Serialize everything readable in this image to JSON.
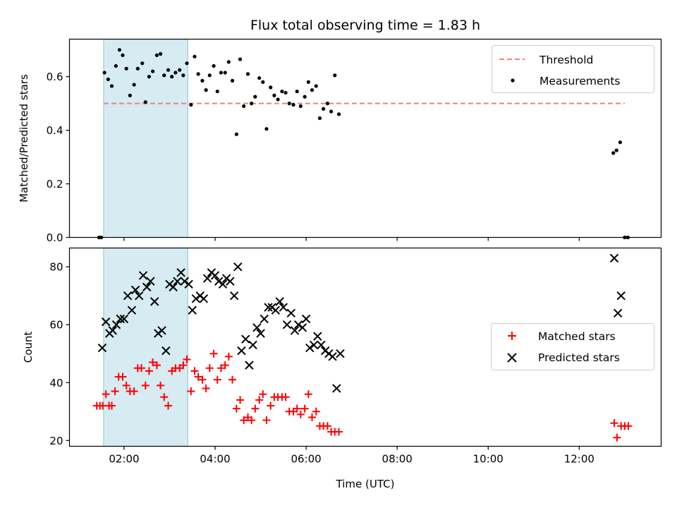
{
  "chart_data": [
    {
      "type": "scatter",
      "title": "Flux total observing time = 1.83 h",
      "xlabel": "",
      "ylabel": "Matched/Predicted stars",
      "xlim": [
        0.8,
        13.8
      ],
      "ylim": [
        0.0,
        0.74
      ],
      "yticks": [
        0.0,
        0.2,
        0.4,
        0.6
      ],
      "ytick_labels": [
        "0.0",
        "0.2",
        "0.4",
        "0.6"
      ],
      "span": {
        "x0": 1.55,
        "x1": 3.4,
        "color": "#add8e6"
      },
      "legend_position": "top-right",
      "threshold": {
        "name": "Threshold",
        "value": 0.5,
        "x0": 1.55,
        "x1": 13.0,
        "color": "#f08080"
      },
      "series": [
        {
          "name": "Measurements",
          "color": "#000000",
          "points": [
            [
              1.45,
              0.0
            ],
            [
              1.5,
              0.0
            ],
            [
              1.57,
              0.615
            ],
            [
              1.65,
              0.59
            ],
            [
              1.73,
              0.565
            ],
            [
              1.82,
              0.64
            ],
            [
              1.9,
              0.7
            ],
            [
              1.97,
              0.68
            ],
            [
              2.05,
              0.63
            ],
            [
              2.13,
              0.53
            ],
            [
              2.22,
              0.57
            ],
            [
              2.3,
              0.63
            ],
            [
              2.4,
              0.65
            ],
            [
              2.47,
              0.505
            ],
            [
              2.55,
              0.6
            ],
            [
              2.63,
              0.62
            ],
            [
              2.72,
              0.68
            ],
            [
              2.8,
              0.685
            ],
            [
              2.88,
              0.605
            ],
            [
              2.97,
              0.625
            ],
            [
              3.05,
              0.6
            ],
            [
              3.13,
              0.615
            ],
            [
              3.22,
              0.625
            ],
            [
              3.3,
              0.605
            ],
            [
              3.38,
              0.65
            ],
            [
              3.47,
              0.495
            ],
            [
              3.55,
              0.675
            ],
            [
              3.63,
              0.61
            ],
            [
              3.72,
              0.585
            ],
            [
              3.8,
              0.55
            ],
            [
              3.88,
              0.605
            ],
            [
              3.97,
              0.64
            ],
            [
              4.05,
              0.545
            ],
            [
              4.13,
              0.615
            ],
            [
              4.22,
              0.615
            ],
            [
              4.3,
              0.655
            ],
            [
              4.38,
              0.585
            ],
            [
              4.47,
              0.385
            ],
            [
              4.55,
              0.665
            ],
            [
              4.63,
              0.49
            ],
            [
              4.72,
              0.61
            ],
            [
              4.8,
              0.5
            ],
            [
              4.88,
              0.525
            ],
            [
              4.97,
              0.595
            ],
            [
              5.05,
              0.58
            ],
            [
              5.13,
              0.405
            ],
            [
              5.22,
              0.56
            ],
            [
              5.3,
              0.53
            ],
            [
              5.38,
              0.515
            ],
            [
              5.47,
              0.545
            ],
            [
              5.55,
              0.54
            ],
            [
              5.63,
              0.5
            ],
            [
              5.72,
              0.495
            ],
            [
              5.8,
              0.545
            ],
            [
              5.88,
              0.49
            ],
            [
              5.97,
              0.525
            ],
            [
              6.05,
              0.58
            ],
            [
              6.13,
              0.55
            ],
            [
              6.22,
              0.565
            ],
            [
              6.3,
              0.445
            ],
            [
              6.38,
              0.48
            ],
            [
              6.47,
              0.5
            ],
            [
              6.55,
              0.47
            ],
            [
              6.63,
              0.605
            ],
            [
              6.72,
              0.46
            ],
            [
              12.75,
              0.315
            ],
            [
              12.82,
              0.325
            ],
            [
              12.9,
              0.355
            ],
            [
              13.0,
              0.0
            ],
            [
              13.07,
              0.0
            ]
          ]
        }
      ]
    },
    {
      "type": "scatter",
      "title": "",
      "xlabel": "Time (UTC)",
      "ylabel": "Count",
      "xlim": [
        0.8,
        13.8
      ],
      "ylim": [
        18.0,
        86.5
      ],
      "yticks": [
        20,
        40,
        60,
        80
      ],
      "ytick_labels": [
        "20",
        "40",
        "60",
        "80"
      ],
      "xticks": [
        2,
        4,
        6,
        8,
        10,
        12
      ],
      "xtick_labels": [
        "02:00",
        "04:00",
        "06:00",
        "08:00",
        "10:00",
        "12:00"
      ],
      "span": {
        "x0": 1.55,
        "x1": 3.4,
        "color": "#add8e6"
      },
      "legend_position": "center-right",
      "series": [
        {
          "name": "Matched stars",
          "marker": "plus",
          "color": "#ff0000",
          "points": [
            [
              1.4,
              32
            ],
            [
              1.47,
              32
            ],
            [
              1.53,
              32
            ],
            [
              1.6,
              36
            ],
            [
              1.67,
              32
            ],
            [
              1.73,
              32
            ],
            [
              1.8,
              37
            ],
            [
              1.88,
              42
            ],
            [
              1.97,
              42
            ],
            [
              2.05,
              39
            ],
            [
              2.13,
              37
            ],
            [
              2.22,
              37
            ],
            [
              2.3,
              45
            ],
            [
              2.38,
              45
            ],
            [
              2.47,
              39
            ],
            [
              2.55,
              44
            ],
            [
              2.63,
              47
            ],
            [
              2.72,
              46
            ],
            [
              2.8,
              39
            ],
            [
              2.88,
              35
            ],
            [
              2.97,
              32
            ],
            [
              3.05,
              44
            ],
            [
              3.13,
              45
            ],
            [
              3.22,
              45
            ],
            [
              3.3,
              46
            ],
            [
              3.38,
              48
            ],
            [
              3.47,
              37
            ],
            [
              3.55,
              44
            ],
            [
              3.63,
              42
            ],
            [
              3.72,
              41
            ],
            [
              3.8,
              38
            ],
            [
              3.88,
              45
            ],
            [
              3.97,
              50
            ],
            [
              4.05,
              41
            ],
            [
              4.13,
              45
            ],
            [
              4.22,
              46
            ],
            [
              4.3,
              49
            ],
            [
              4.38,
              41
            ],
            [
              4.47,
              31
            ],
            [
              4.55,
              34
            ],
            [
              4.63,
              27
            ],
            [
              4.72,
              28
            ],
            [
              4.8,
              27
            ],
            [
              4.88,
              31
            ],
            [
              4.97,
              34
            ],
            [
              5.05,
              36
            ],
            [
              5.13,
              27
            ],
            [
              5.22,
              32
            ],
            [
              5.3,
              35
            ],
            [
              5.38,
              35
            ],
            [
              5.47,
              35
            ],
            [
              5.55,
              35
            ],
            [
              5.63,
              30
            ],
            [
              5.72,
              30
            ],
            [
              5.8,
              31
            ],
            [
              5.88,
              29
            ],
            [
              5.97,
              31
            ],
            [
              6.05,
              36
            ],
            [
              6.13,
              28
            ],
            [
              6.22,
              30
            ],
            [
              6.3,
              25
            ],
            [
              6.38,
              25
            ],
            [
              6.47,
              25
            ],
            [
              6.55,
              23
            ],
            [
              6.63,
              23
            ],
            [
              6.72,
              23
            ],
            [
              12.77,
              26
            ],
            [
              12.83,
              21
            ],
            [
              12.92,
              25
            ],
            [
              13.0,
              25
            ],
            [
              13.08,
              25
            ]
          ]
        },
        {
          "name": "Predicted stars",
          "marker": "cross",
          "color": "#000000",
          "points": [
            [
              1.52,
              52
            ],
            [
              1.6,
              61
            ],
            [
              1.68,
              57
            ],
            [
              1.75,
              58
            ],
            [
              1.83,
              60
            ],
            [
              1.92,
              62
            ],
            [
              2.0,
              62
            ],
            [
              2.08,
              70
            ],
            [
              2.17,
              65
            ],
            [
              2.25,
              72
            ],
            [
              2.33,
              70
            ],
            [
              2.42,
              77
            ],
            [
              2.5,
              73
            ],
            [
              2.58,
              75
            ],
            [
              2.67,
              68
            ],
            [
              2.75,
              57
            ],
            [
              2.83,
              58
            ],
            [
              2.92,
              51
            ],
            [
              3.0,
              74
            ],
            [
              3.08,
              73
            ],
            [
              3.17,
              75
            ],
            [
              3.25,
              78
            ],
            [
              3.33,
              75
            ],
            [
              3.42,
              74
            ],
            [
              3.5,
              65
            ],
            [
              3.58,
              69
            ],
            [
              3.67,
              70
            ],
            [
              3.75,
              69
            ],
            [
              3.83,
              76
            ],
            [
              3.92,
              78
            ],
            [
              4.0,
              77
            ],
            [
              4.08,
              75
            ],
            [
              4.17,
              74
            ],
            [
              4.25,
              76
            ],
            [
              4.33,
              75
            ],
            [
              4.42,
              70
            ],
            [
              4.5,
              80
            ],
            [
              4.58,
              51
            ],
            [
              4.67,
              55
            ],
            [
              4.75,
              46
            ],
            [
              4.83,
              53
            ],
            [
              4.92,
              59
            ],
            [
              5.0,
              57
            ],
            [
              5.08,
              62
            ],
            [
              5.17,
              66
            ],
            [
              5.25,
              66
            ],
            [
              5.33,
              65
            ],
            [
              5.42,
              68
            ],
            [
              5.5,
              66
            ],
            [
              5.58,
              60
            ],
            [
              5.67,
              64
            ],
            [
              5.75,
              58
            ],
            [
              5.83,
              60
            ],
            [
              5.92,
              59
            ],
            [
              6.0,
              62
            ],
            [
              6.08,
              52
            ],
            [
              6.17,
              53
            ],
            [
              6.25,
              56
            ],
            [
              6.33,
              53
            ],
            [
              6.42,
              51
            ],
            [
              6.5,
              50
            ],
            [
              6.58,
              49
            ],
            [
              6.67,
              38
            ],
            [
              6.75,
              50
            ],
            [
              12.77,
              83
            ],
            [
              12.85,
              64
            ],
            [
              12.92,
              70
            ]
          ]
        }
      ]
    }
  ]
}
